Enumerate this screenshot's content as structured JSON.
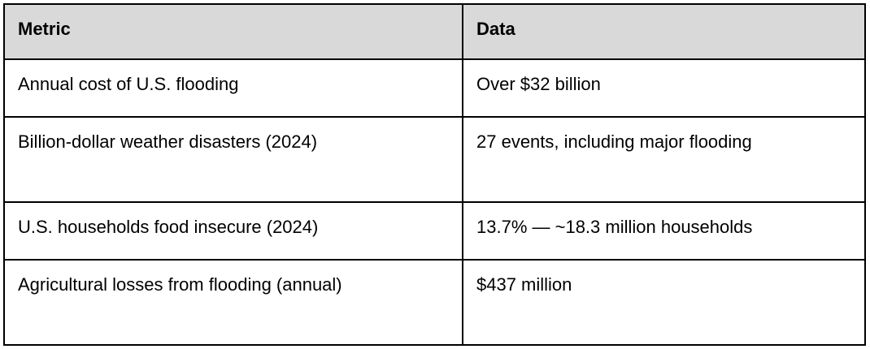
{
  "table": {
    "columns": [
      {
        "label": "Metric"
      },
      {
        "label": "Data"
      }
    ],
    "rows": [
      {
        "metric": "Annual cost of U.S. flooding",
        "data": "Over $32 billion"
      },
      {
        "metric": "Billion-dollar weather disasters (2024)",
        "data": "27 events, including major flooding"
      },
      {
        "metric": "U.S. households food insecure (2024)",
        "data": "13.7% — ~18.3 million households"
      },
      {
        "metric": "Agricultural losses from flooding (annual)",
        "data": "$437 million"
      }
    ],
    "colors": {
      "header_bg": "#d9d9d9",
      "border": "#000000",
      "text": "#000000",
      "row_bg": "#ffffff"
    }
  }
}
